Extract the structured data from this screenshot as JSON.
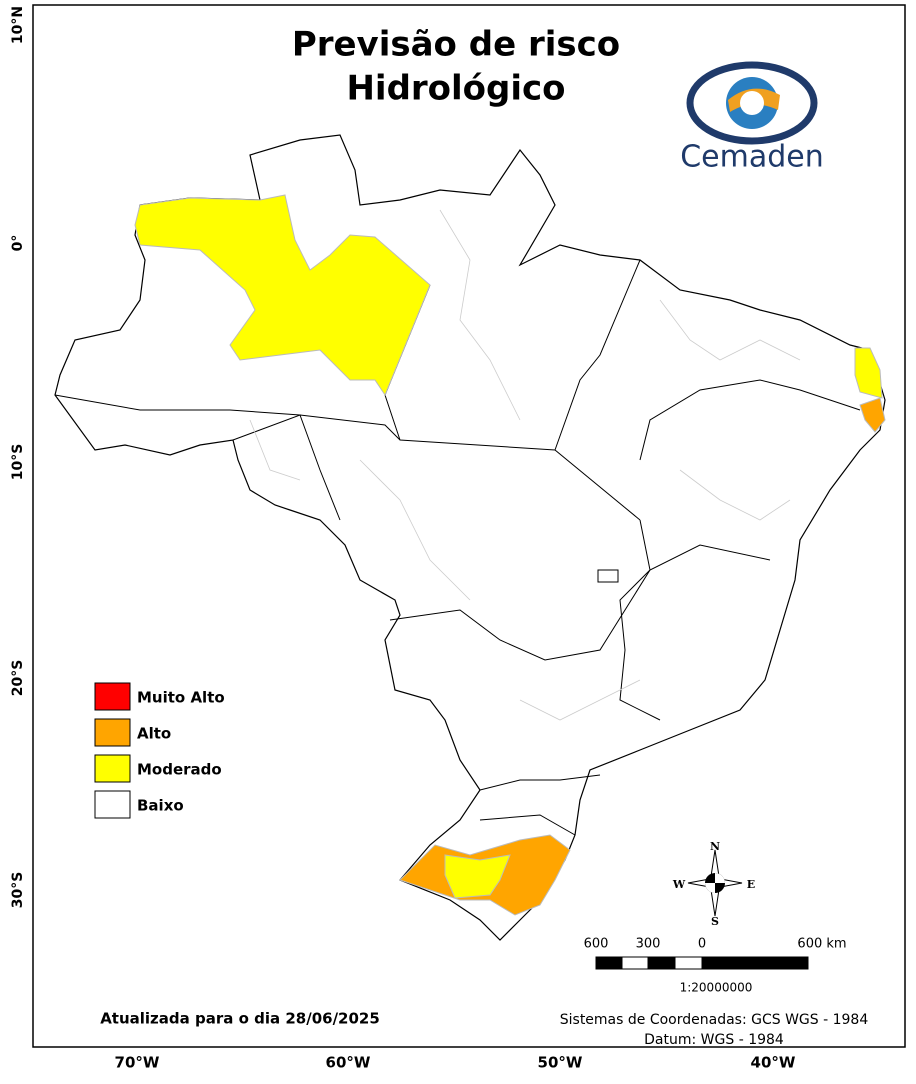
{
  "title": [
    "Previsão de risco",
    "Hidrológico"
  ],
  "logo": "Cemaden",
  "legend": [
    {
      "label": "Muito Alto",
      "color": "#ff0000"
    },
    {
      "label": "Alto",
      "color": "#ffa500"
    },
    {
      "label": "Moderado",
      "color": "#ffff00"
    },
    {
      "label": "Baixo",
      "color": "#ffffff"
    }
  ],
  "lat_labels": [
    "10°N",
    "0°",
    "10°S",
    "20°S",
    "30°S"
  ],
  "lon_labels": [
    "70°W",
    "60°W",
    "50°W",
    "40°W"
  ],
  "compass": {
    "n": "N",
    "e": "E",
    "s": "S",
    "w": "W"
  },
  "scale_labels": [
    "600",
    "300",
    "0",
    "600 km"
  ],
  "scale_ratio": "1:20000000",
  "updated": "Atualizada para o dia 28/06/2025",
  "crs": [
    "Sistemas de Coordenadas: GCS WGS - 1984",
    "Datum: WGS - 1984"
  ]
}
